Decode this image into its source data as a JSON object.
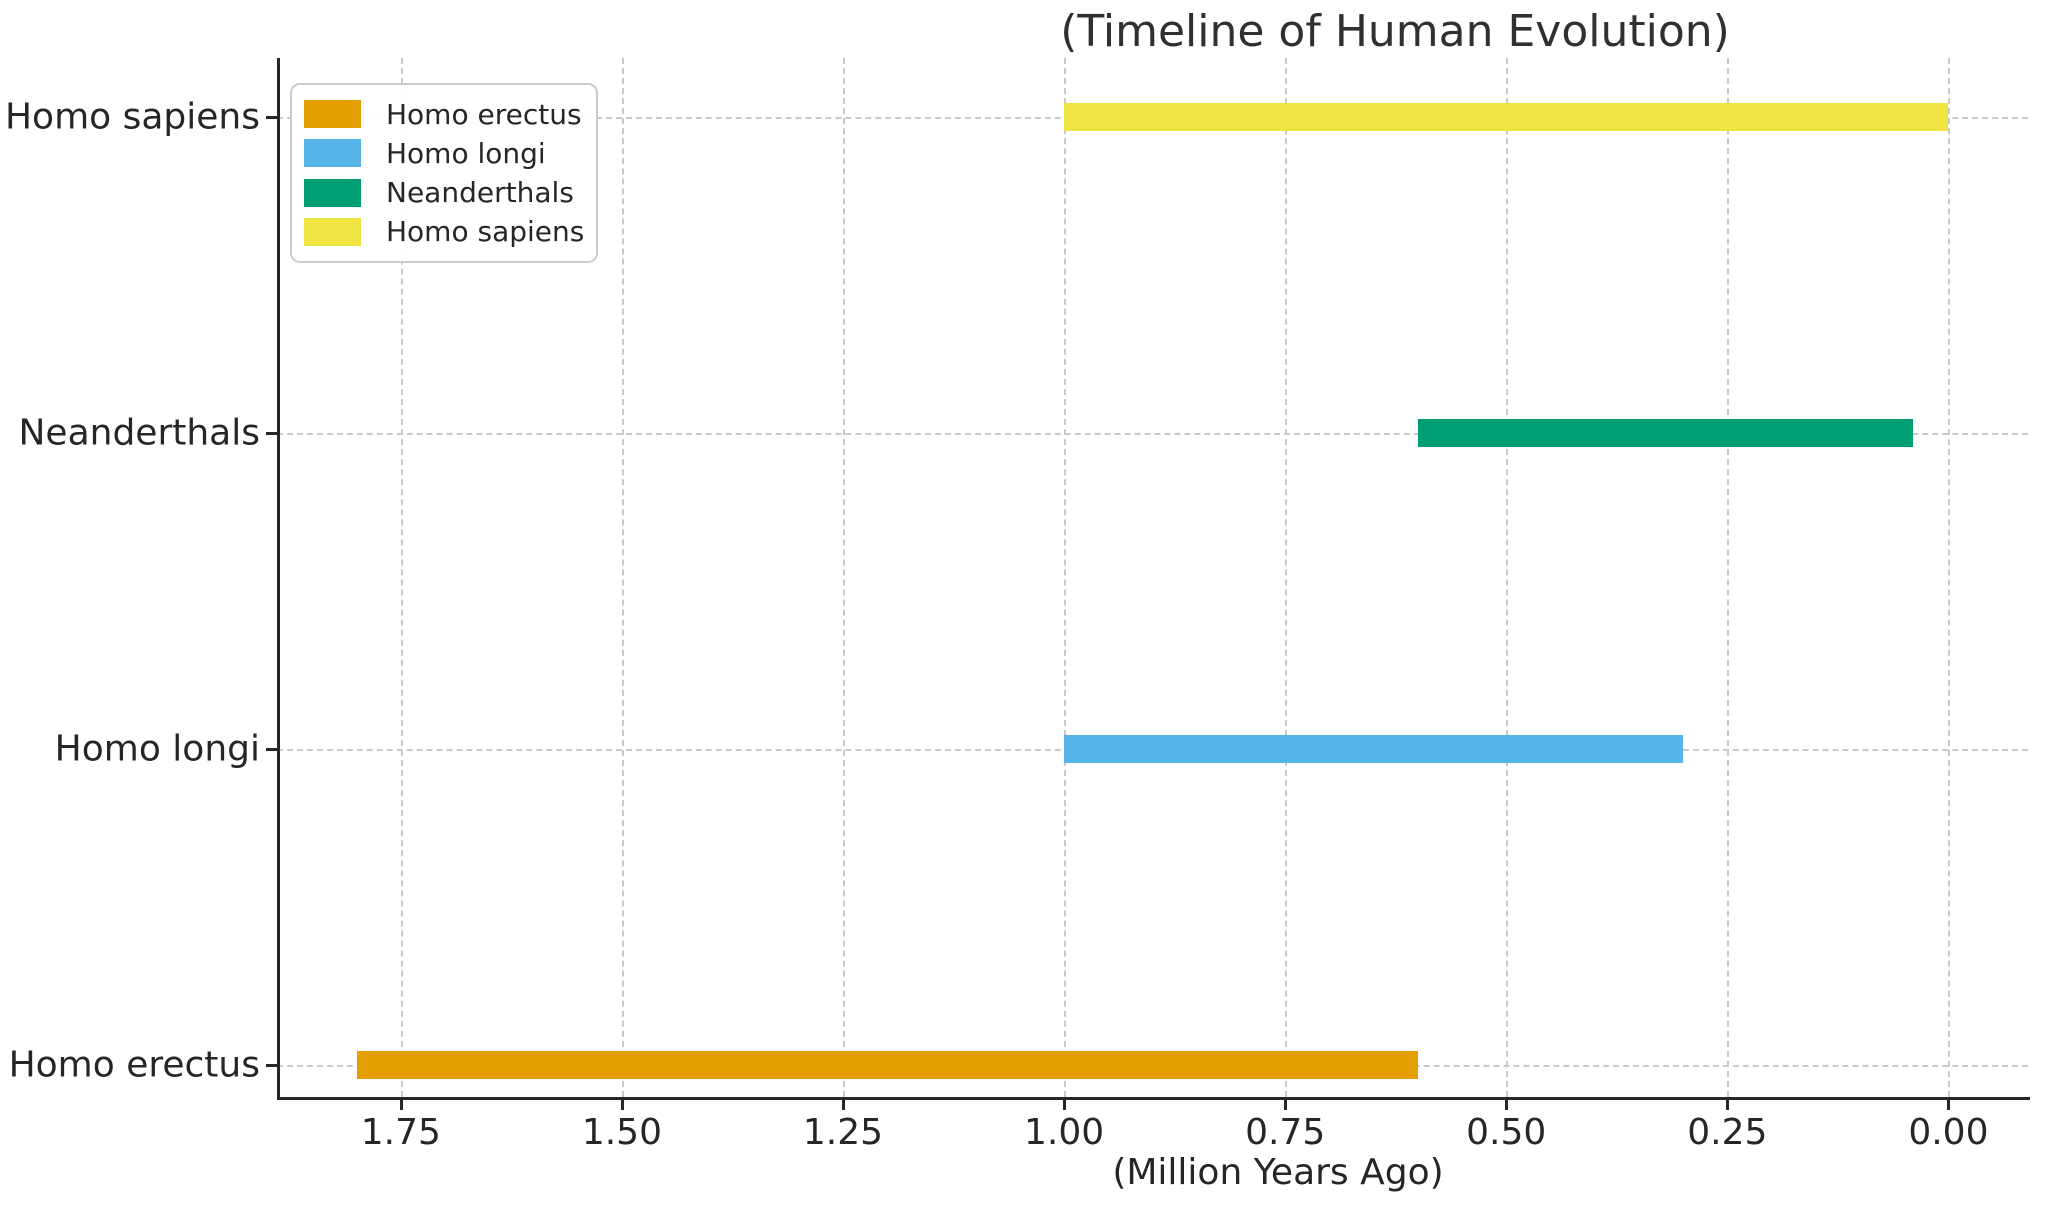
{
  "chart_data": {
    "type": "bar",
    "orientation": "horizontal",
    "title": "(Timeline of Human Evolution)",
    "xlabel": "(Million Years Ago)",
    "ylabel": "",
    "categories": [
      "Homo erectus",
      "Homo longi",
      "Neanderthals",
      "Homo sapiens"
    ],
    "series": [
      {
        "name": "Homo erectus",
        "category": "Homo erectus",
        "start_mya": 1.8,
        "end_mya": 0.6,
        "color": "#E69F00"
      },
      {
        "name": "Homo longi",
        "category": "Homo longi",
        "start_mya": 1.0,
        "end_mya": 0.3,
        "color": "#56B4E9"
      },
      {
        "name": "Neanderthals",
        "category": "Neanderthals",
        "start_mya": 0.6,
        "end_mya": 0.04,
        "color": "#009E73"
      },
      {
        "name": "Homo sapiens",
        "category": "Homo sapiens",
        "start_mya": 1.0,
        "end_mya": 0.0,
        "color": "#F0E442"
      }
    ],
    "x_tick_values": [
      1.75,
      1.5,
      1.25,
      1.0,
      0.75,
      0.5,
      0.25,
      0.0
    ],
    "x_tick_labels": [
      "1.75",
      "1.50",
      "1.25",
      "1.00",
      "0.75",
      "0.50",
      "0.25",
      "0.00"
    ],
    "xlim": [
      1.89,
      -0.09
    ],
    "x_axis_inverted": true,
    "grid": "both, dashed",
    "legend": {
      "position": "upper-left",
      "entries": [
        {
          "label": "Homo erectus",
          "color": "#E69F00"
        },
        {
          "label": "Homo longi",
          "color": "#56B4E9"
        },
        {
          "label": "Neanderthals",
          "color": "#009E73"
        },
        {
          "label": "Homo sapiens",
          "color": "#F0E442"
        }
      ]
    },
    "colors": {
      "grid": "#c9c9c9",
      "axis": "#262626",
      "text": "#262626",
      "background": "#ffffff"
    }
  }
}
